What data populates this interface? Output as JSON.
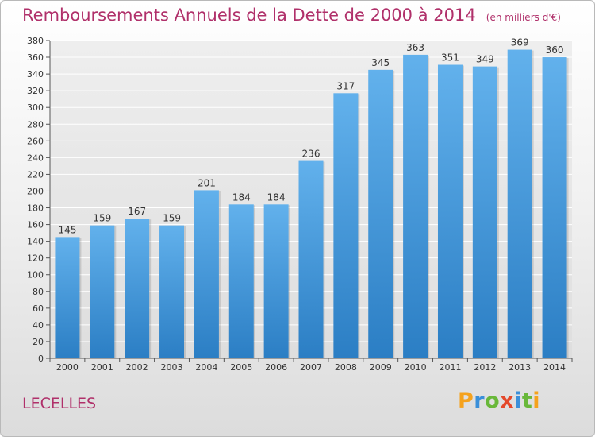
{
  "header": {
    "title": "Remboursements Annuels de la Dette de 2000 à 2014",
    "unit": "(en milliers d'€)"
  },
  "footer": {
    "commune": "LECELLES",
    "logo": "Proxiti"
  },
  "colors": {
    "bar_light": "#62b1ec",
    "bar_dark": "#2b7ec4",
    "title": "#b0306a",
    "grid": "#ffffff"
  },
  "chart_data": {
    "type": "bar",
    "title": "Remboursements Annuels de la Dette de 2000 à 2014",
    "categories": [
      "2000",
      "2001",
      "2002",
      "2003",
      "2004",
      "2005",
      "2006",
      "2007",
      "2008",
      "2009",
      "2010",
      "2011",
      "2012",
      "2013",
      "2014"
    ],
    "values": [
      145,
      159,
      167,
      159,
      201,
      184,
      184,
      236,
      317,
      345,
      363,
      351,
      349,
      369,
      360
    ],
    "xlabel": "",
    "ylabel": "",
    "ylim": [
      0,
      380
    ],
    "ytick_step": 20,
    "grid": true,
    "data_labels": true
  }
}
